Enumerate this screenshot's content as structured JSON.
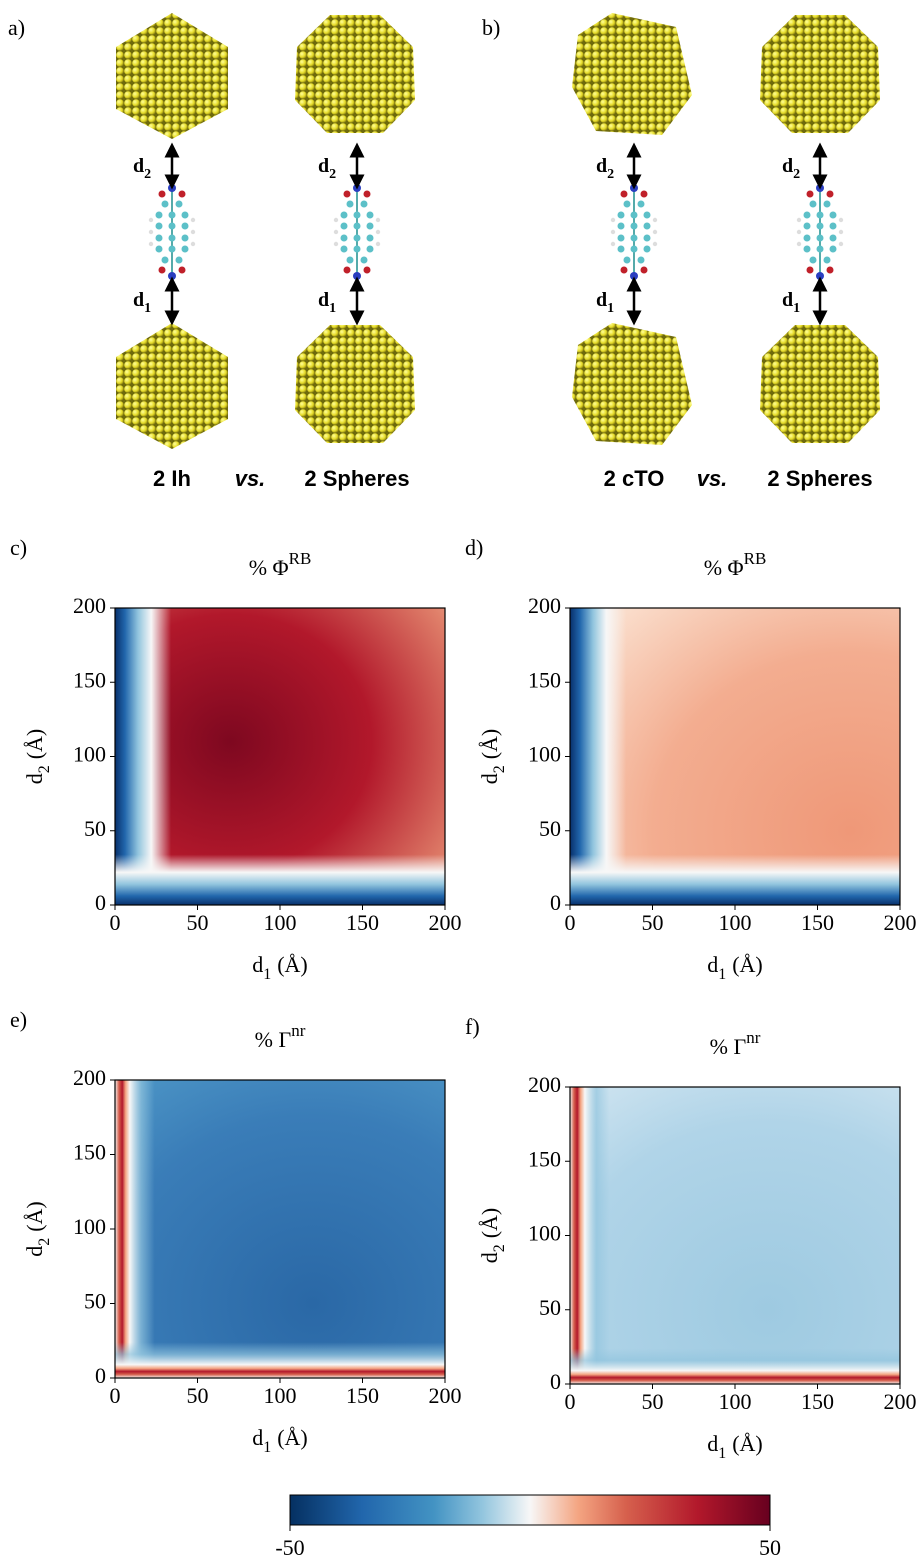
{
  "panels": [
    {
      "label": "a)",
      "shape_left": "2 Ih",
      "vs": "vs.",
      "shape_right": "2 Spheres"
    },
    {
      "label": "b)",
      "shape_left": "2 cTO",
      "vs": "vs.",
      "shape_right": "2 Spheres"
    }
  ],
  "distance_label": {
    "base": "d",
    "sub_bottom": "1",
    "sub_top": "2"
  },
  "chart_data": [
    {
      "type": "heatmap",
      "panel_label": "c)",
      "title": "% Φ",
      "title_sup": "RB",
      "x_label": "d",
      "x_label_sub": "1",
      "x_label_unit": "(Å)",
      "y_label": "d",
      "y_label_sub": "2",
      "y_label_unit": "(Å)",
      "xlim": [
        0,
        200
      ],
      "ylim": [
        0,
        200
      ],
      "xticks": [
        0,
        50,
        100,
        150,
        200
      ],
      "yticks": [
        0,
        50,
        100,
        150,
        200
      ]
    },
    {
      "type": "heatmap",
      "panel_label": "d)",
      "title": "% Φ",
      "title_sup": "RB",
      "x_label": "d",
      "x_label_sub": "1",
      "x_label_unit": "(Å)",
      "y_label": "d",
      "y_label_sub": "2",
      "y_label_unit": "(Å)",
      "xlim": [
        0,
        200
      ],
      "ylim": [
        0,
        200
      ],
      "xticks": [
        0,
        50,
        100,
        150,
        200
      ],
      "yticks": [
        0,
        50,
        100,
        150,
        200
      ]
    },
    {
      "type": "heatmap",
      "panel_label": "e)",
      "title": "% Γ",
      "title_sup": "nr",
      "x_label": "d",
      "x_label_sub": "1",
      "x_label_unit": "(Å)",
      "y_label": "d",
      "y_label_sub": "2",
      "y_label_unit": "(Å)",
      "xlim": [
        0,
        200
      ],
      "ylim": [
        0,
        200
      ],
      "xticks": [
        0,
        50,
        100,
        150,
        200
      ],
      "yticks": [
        0,
        50,
        100,
        150,
        200
      ]
    },
    {
      "type": "heatmap",
      "panel_label": "f)",
      "title": "% Γ",
      "title_sup": "nr",
      "x_label": "d",
      "x_label_sub": "1",
      "x_label_unit": "(Å)",
      "y_label": "d",
      "y_label_sub": "2",
      "y_label_unit": "(Å)",
      "xlim": [
        0,
        200
      ],
      "ylim": [
        0,
        200
      ],
      "xticks": [
        0,
        50,
        100,
        150,
        200
      ],
      "yticks": [
        0,
        50,
        100,
        150,
        200
      ]
    }
  ],
  "colorbar": {
    "lim": [
      -50,
      50
    ],
    "ticks": [
      -50,
      50
    ]
  }
}
